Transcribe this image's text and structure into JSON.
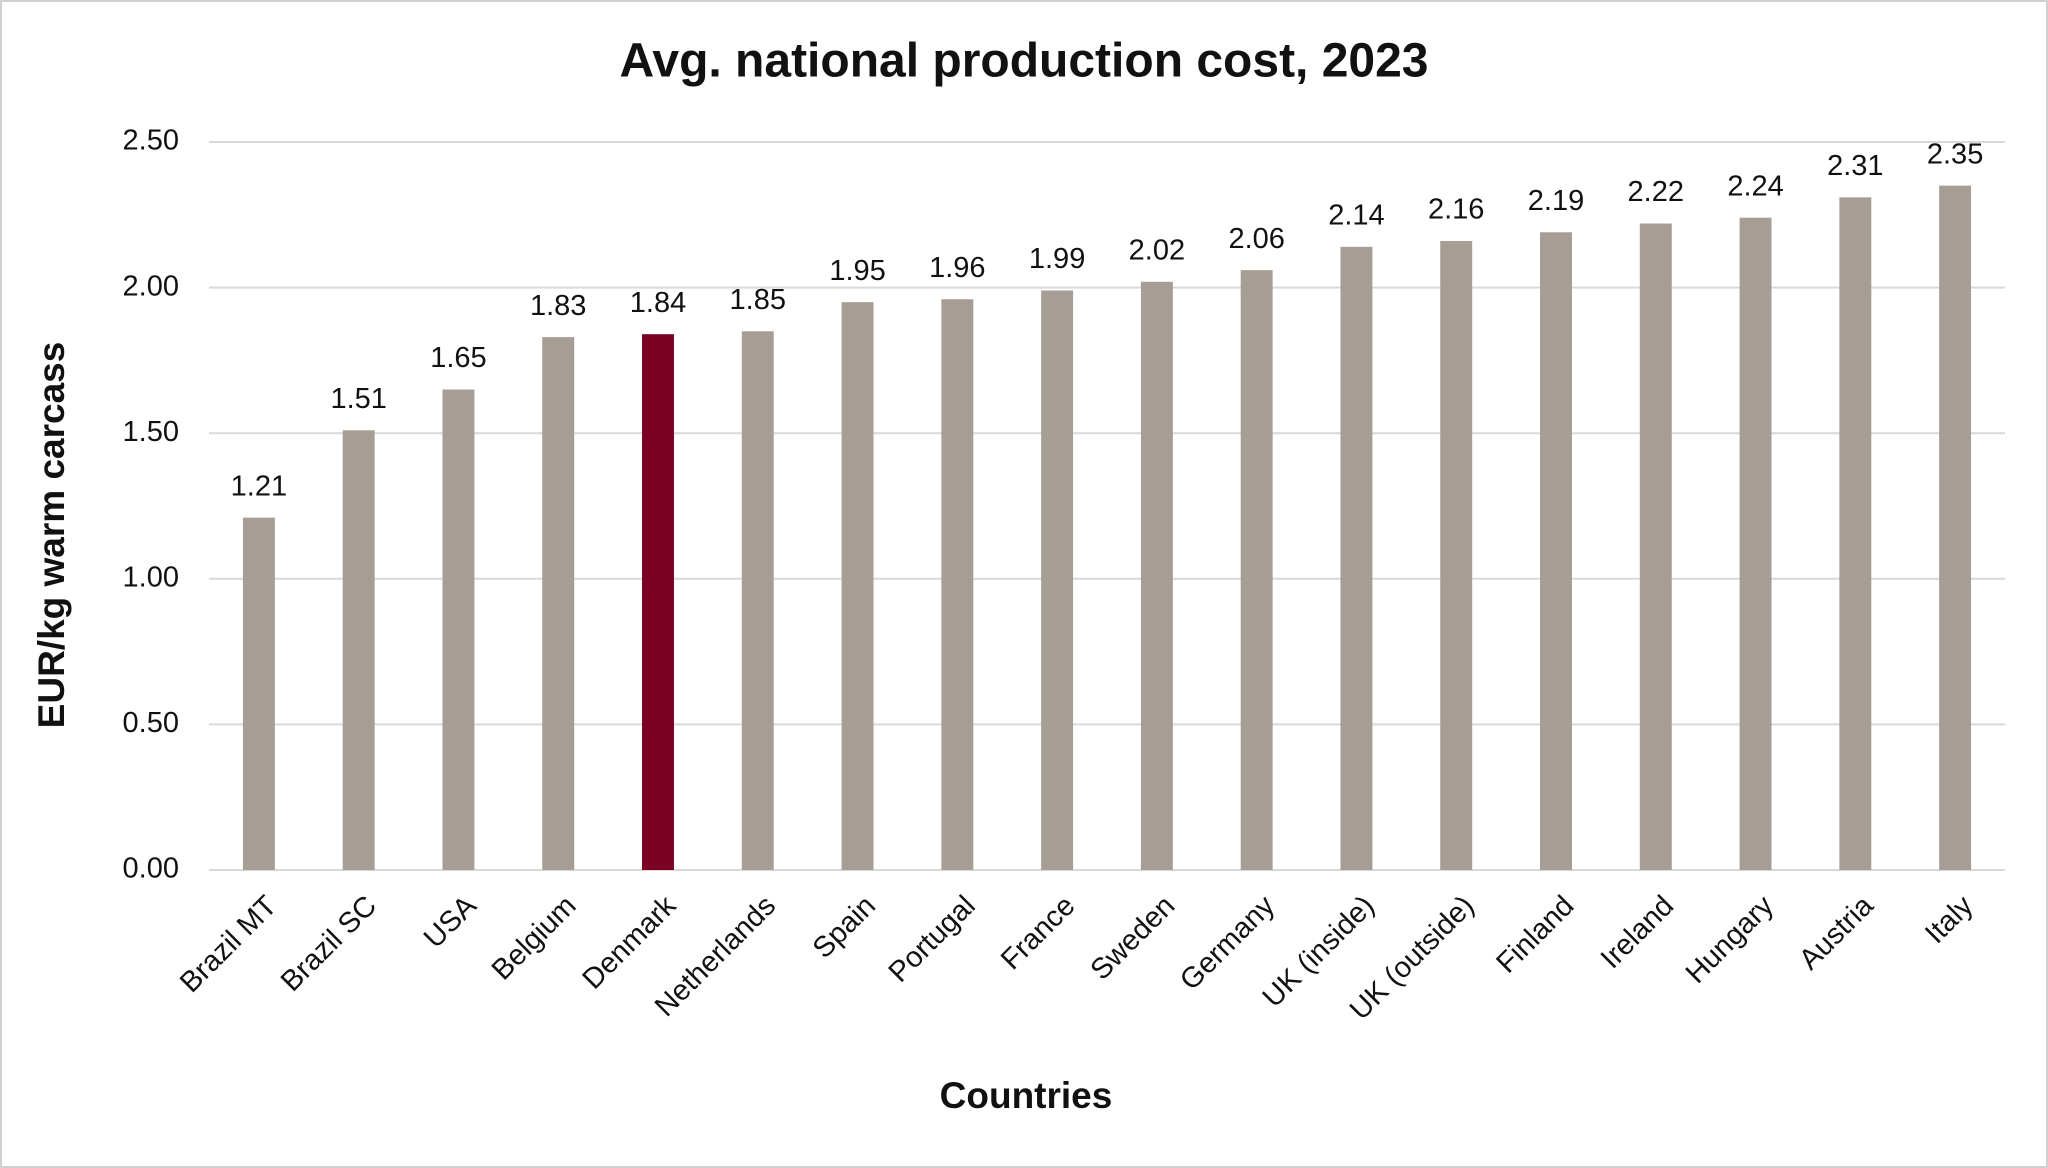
{
  "chart_data": {
    "type": "bar",
    "title": "Avg. national production cost, 2023",
    "x_label": "Countries",
    "y_label": "EUR/kg warm carcass",
    "categories": [
      "Brazil MT",
      "Brazil SC",
      "USA",
      "Belgium",
      "Denmark",
      "Netherlands",
      "Spain",
      "Portugal",
      "France",
      "Sweden",
      "Germany",
      "UK (inside)",
      "UK (outside)",
      "Finland",
      "Ireland",
      "Hungary",
      "Austria",
      "Italy"
    ],
    "values": [
      1.21,
      1.51,
      1.65,
      1.83,
      1.84,
      1.85,
      1.95,
      1.96,
      1.99,
      2.02,
      2.06,
      2.14,
      2.16,
      2.19,
      2.22,
      2.24,
      2.31,
      2.35
    ],
    "colors": [
      "#a69d95",
      "#a69d95",
      "#a69d95",
      "#a69d95",
      "#7b0024",
      "#a69d95",
      "#a69d95",
      "#a69d95",
      "#a69d95",
      "#a69d95",
      "#a69d95",
      "#a69d95",
      "#a69d95",
      "#a69d95",
      "#a69d95",
      "#a69d95",
      "#a69d95",
      "#a69d95"
    ],
    "ylim": [
      0,
      2.5
    ],
    "yticks": [
      {
        "value": 0,
        "label": "0.00"
      },
      {
        "value": 0.5,
        "label": "0.50"
      },
      {
        "value": 1,
        "label": "1.00"
      },
      {
        "value": 1.5,
        "label": "1.50"
      },
      {
        "value": 2,
        "label": "2.00"
      },
      {
        "value": 2.5,
        "label": "2.50"
      }
    ],
    "grid": true
  }
}
